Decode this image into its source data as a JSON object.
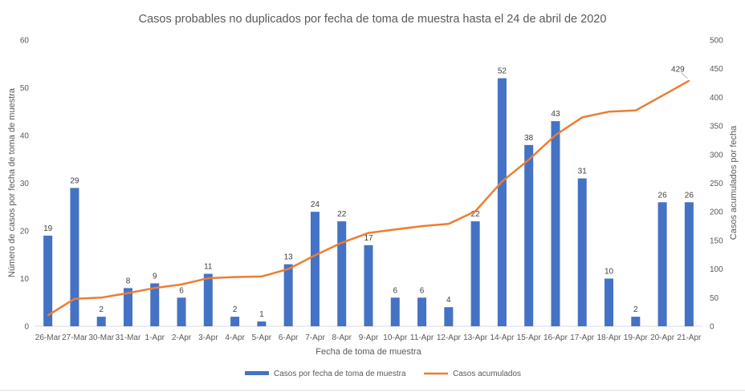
{
  "chart_data": {
    "type": "bar",
    "title": "Casos probables no duplicados por fecha de toma de muestra hasta el 24 de abril de 2020",
    "xlabel": "Fecha de toma de muestra",
    "ylabel": "Número de casos por fecha de toma de muestra",
    "y2label": "Casos acumulados por fecha",
    "ylim": [
      0,
      60
    ],
    "y2lim": [
      0,
      500
    ],
    "yticks": [
      "0",
      "10",
      "20",
      "30",
      "40",
      "50",
      "60"
    ],
    "y2ticks": [
      "0",
      "50",
      "100",
      "150",
      "200",
      "250",
      "300",
      "350",
      "400",
      "450",
      "500"
    ],
    "grid": false,
    "legend_position": "bottom",
    "categories": [
      "26-Mar",
      "27-Mar",
      "30-Mar",
      "31-Mar",
      "1-Apr",
      "2-Apr",
      "3-Apr",
      "4-Apr",
      "5-Apr",
      "6-Apr",
      "7-Apr",
      "8-Apr",
      "9-Apr",
      "10-Apr",
      "11-Apr",
      "12-Apr",
      "13-Apr",
      "14-Apr",
      "15-Apr",
      "16-Apr",
      "17-Apr",
      "18-Apr",
      "19-Apr",
      "20-Apr",
      "21-Apr"
    ],
    "series": [
      {
        "name": "Casos por fecha de toma de muestra",
        "type": "bar",
        "axis": "left",
        "color": "#4472C4",
        "values": [
          19,
          29,
          2,
          8,
          9,
          6,
          11,
          2,
          1,
          13,
          24,
          22,
          17,
          6,
          6,
          4,
          22,
          52,
          38,
          43,
          31,
          10,
          2,
          26,
          26
        ],
        "labels": [
          "19",
          "29",
          "2",
          "8",
          "9",
          "6",
          "11",
          "2",
          "1",
          "13",
          "24",
          "22",
          "17",
          "6",
          "6",
          "4",
          "22",
          "52",
          "38",
          "43",
          "31",
          "10",
          "2",
          "26",
          "26"
        ]
      },
      {
        "name": "Casos acumulados",
        "type": "line",
        "axis": "right",
        "color": "#ED7D31",
        "values": [
          19,
          48,
          50,
          58,
          67,
          73,
          84,
          86,
          87,
          100,
          124,
          146,
          163,
          169,
          175,
          179,
          201,
          253,
          291,
          334,
          365,
          375,
          377,
          403,
          429
        ],
        "end_label": "429"
      }
    ]
  }
}
